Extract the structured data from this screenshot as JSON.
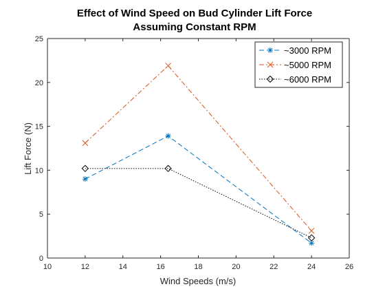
{
  "chart_data": {
    "type": "line",
    "title": "Effect of Wind Speed on Bud Cylinder Lift Force",
    "subtitle": "Assuming Constant RPM",
    "xlabel": "Wind Speeds (m/s)",
    "ylabel": "Lift Force (N)",
    "xlim": [
      10,
      26
    ],
    "ylim": [
      0,
      25
    ],
    "xticks": [
      10,
      12,
      14,
      16,
      18,
      20,
      22,
      24,
      26
    ],
    "yticks": [
      0,
      5,
      10,
      15,
      20,
      25
    ],
    "grid": false,
    "legend_position": "top-right",
    "series": [
      {
        "name": "~3000 RPM",
        "color": "#0072BD",
        "marker": "asterisk",
        "line_style": "dashed",
        "x": [
          12,
          16.4,
          24
        ],
        "y": [
          9.0,
          13.9,
          1.7
        ]
      },
      {
        "name": "~5000 RPM",
        "color": "#D95319",
        "marker": "x",
        "line_style": "dash-dot",
        "x": [
          12,
          16.4,
          24
        ],
        "y": [
          13.1,
          21.9,
          3.1
        ]
      },
      {
        "name": "~6000 RPM",
        "color": "#000000",
        "marker": "diamond",
        "line_style": "dotted",
        "x": [
          12,
          16.4,
          24
        ],
        "y": [
          10.2,
          10.2,
          2.3
        ]
      }
    ]
  }
}
